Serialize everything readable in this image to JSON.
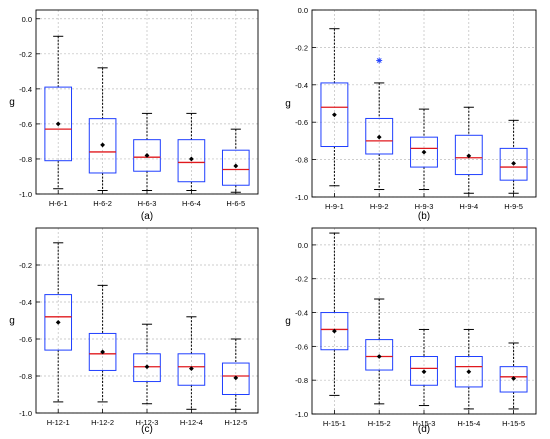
{
  "figure": {
    "colors": {
      "box": "#1f3fff",
      "median": "#e0191e",
      "whisker": "#000000",
      "mean": "#000000",
      "outlier": "#1f3fff",
      "grid": "#bdbdbd"
    }
  },
  "chart_data": [
    {
      "type": "box",
      "panel_label": "(a)",
      "ylabel": "g",
      "ylim": [
        -1.0,
        0.05
      ],
      "yticks": [
        "0.0",
        "-0.2",
        "-0.4",
        "-0.6",
        "-0.8",
        "-1.0"
      ],
      "grid": true,
      "categories": [
        "H-6-1",
        "H-6-2",
        "H-6-3",
        "H-6-4",
        "H-6-5"
      ],
      "boxes": [
        {
          "min": -0.97,
          "q1": -0.81,
          "median": -0.63,
          "q3": -0.39,
          "max": -0.1,
          "mean": -0.6,
          "outliers": []
        },
        {
          "min": -0.98,
          "q1": -0.88,
          "median": -0.76,
          "q3": -0.57,
          "max": -0.28,
          "mean": -0.72,
          "outliers": []
        },
        {
          "min": -0.98,
          "q1": -0.87,
          "median": -0.79,
          "q3": -0.69,
          "max": -0.54,
          "mean": -0.78,
          "outliers": []
        },
        {
          "min": -0.98,
          "q1": -0.93,
          "median": -0.82,
          "q3": -0.69,
          "max": -0.54,
          "mean": -0.8,
          "outliers": []
        },
        {
          "min": -0.99,
          "q1": -0.95,
          "median": -0.86,
          "q3": -0.75,
          "max": -0.63,
          "mean": -0.84,
          "outliers": []
        }
      ]
    },
    {
      "type": "box",
      "panel_label": "(b)",
      "ylabel": "g",
      "ylim": [
        -1.0,
        0.0
      ],
      "yticks": [
        "0.0",
        "-0.2",
        "-0.4",
        "-0.6",
        "-0.8",
        "-1.0"
      ],
      "grid": true,
      "categories": [
        "H-9-1",
        "H-9-2",
        "H-9-3",
        "H-9-4",
        "H-9-5"
      ],
      "boxes": [
        {
          "min": -0.94,
          "q1": -0.73,
          "median": -0.52,
          "q3": -0.39,
          "max": -0.1,
          "mean": -0.56,
          "outliers": []
        },
        {
          "min": -0.96,
          "q1": -0.77,
          "median": -0.7,
          "q3": -0.58,
          "max": -0.39,
          "mean": -0.68,
          "outliers": [
            -0.27
          ]
        },
        {
          "min": -0.96,
          "q1": -0.84,
          "median": -0.74,
          "q3": -0.68,
          "max": -0.53,
          "mean": -0.76,
          "outliers": []
        },
        {
          "min": -0.98,
          "q1": -0.88,
          "median": -0.79,
          "q3": -0.67,
          "max": -0.52,
          "mean": -0.78,
          "outliers": []
        },
        {
          "min": -0.98,
          "q1": -0.91,
          "median": -0.84,
          "q3": -0.74,
          "max": -0.59,
          "mean": -0.82,
          "outliers": []
        }
      ]
    },
    {
      "type": "box",
      "panel_label": "(c)",
      "ylabel": "g",
      "ylim": [
        -1.0,
        0.0
      ],
      "yticks": [
        "-0.2",
        "-0.4",
        "-0.6",
        "-0.8",
        "-1.0"
      ],
      "grid": true,
      "categories": [
        "H-12-1",
        "H-12-2",
        "H-12-3",
        "H-12-4",
        "H-12-5"
      ],
      "boxes": [
        {
          "min": -0.94,
          "q1": -0.66,
          "median": -0.48,
          "q3": -0.36,
          "max": -0.08,
          "mean": -0.51,
          "outliers": []
        },
        {
          "min": -0.94,
          "q1": -0.77,
          "median": -0.68,
          "q3": -0.57,
          "max": -0.31,
          "mean": -0.67,
          "outliers": []
        },
        {
          "min": -0.95,
          "q1": -0.83,
          "median": -0.75,
          "q3": -0.68,
          "max": -0.52,
          "mean": -0.75,
          "outliers": []
        },
        {
          "min": -0.98,
          "q1": -0.85,
          "median": -0.75,
          "q3": -0.68,
          "max": -0.48,
          "mean": -0.76,
          "outliers": []
        },
        {
          "min": -0.98,
          "q1": -0.9,
          "median": -0.8,
          "q3": -0.73,
          "max": -0.6,
          "mean": -0.81,
          "outliers": []
        }
      ]
    },
    {
      "type": "box",
      "panel_label": "(d)",
      "ylabel": "g",
      "ylim": [
        -1.0,
        0.1
      ],
      "yticks": [
        "0.0",
        "-0.2",
        "-0.4",
        "-0.6",
        "-0.8",
        "-1.0"
      ],
      "grid": true,
      "categories": [
        "H-15-1",
        "H-15-2",
        "H-15-3",
        "H-15-4",
        "H-15-5"
      ],
      "boxes": [
        {
          "min": -0.89,
          "q1": -0.62,
          "median": -0.5,
          "q3": -0.4,
          "max": 0.07,
          "mean": -0.51,
          "outliers": []
        },
        {
          "min": -0.94,
          "q1": -0.74,
          "median": -0.66,
          "q3": -0.56,
          "max": -0.32,
          "mean": -0.66,
          "outliers": []
        },
        {
          "min": -0.95,
          "q1": -0.83,
          "median": -0.73,
          "q3": -0.66,
          "max": -0.5,
          "mean": -0.75,
          "outliers": []
        },
        {
          "min": -0.97,
          "q1": -0.84,
          "median": -0.72,
          "q3": -0.66,
          "max": -0.5,
          "mean": -0.75,
          "outliers": []
        },
        {
          "min": -0.97,
          "q1": -0.87,
          "median": -0.78,
          "q3": -0.72,
          "max": -0.58,
          "mean": -0.79,
          "outliers": []
        }
      ]
    }
  ]
}
